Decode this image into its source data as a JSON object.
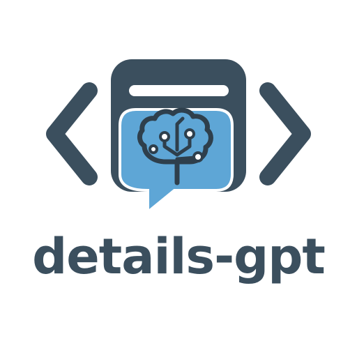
{
  "brand": {
    "name": "details-gpt"
  },
  "icons": {
    "left_bracket": "chevron-left-icon",
    "right_bracket": "chevron-right-icon",
    "window": "browser-window-icon",
    "bubble": "chat-bubble-icon",
    "brain": "brain-circuit-icon"
  },
  "colors": {
    "primary": "#3b4f5e",
    "accent": "#5ea6d6",
    "background": "#ffffff"
  }
}
